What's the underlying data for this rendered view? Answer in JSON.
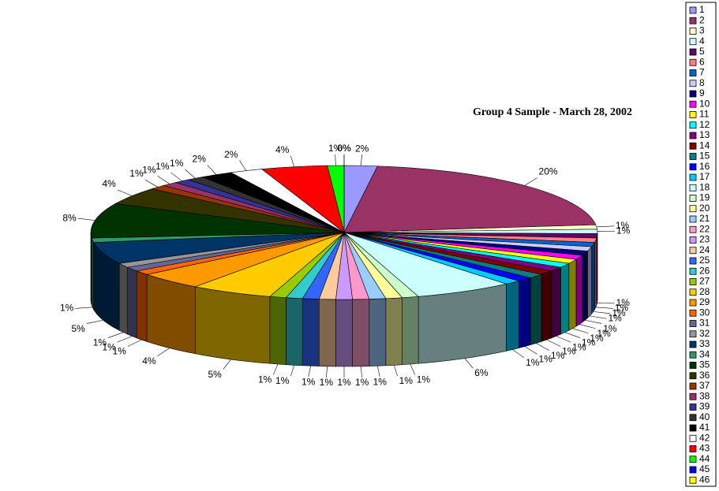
{
  "chart_data": {
    "type": "pie3d",
    "title": "Group 4 Sample - March 28, 2002",
    "categories": [
      "1",
      "2",
      "3",
      "4",
      "5",
      "6",
      "7",
      "8",
      "9",
      "10",
      "11",
      "12",
      "13",
      "14",
      "15",
      "16",
      "17",
      "18",
      "19",
      "20",
      "21",
      "22",
      "23",
      "24",
      "25",
      "26",
      "27",
      "28",
      "29",
      "30",
      "31",
      "32",
      "33",
      "34",
      "35",
      "36",
      "37",
      "38",
      "39",
      "40",
      "41",
      "42",
      "43",
      "44",
      "45",
      "46"
    ],
    "values": [
      2,
      20,
      1,
      1,
      1,
      1,
      1,
      1,
      1,
      1,
      1,
      1,
      1,
      1,
      1,
      1,
      1,
      6,
      1,
      1,
      1,
      1,
      1,
      1,
      1,
      1,
      1,
      5,
      4,
      1,
      1,
      1,
      5,
      1,
      8,
      4,
      1,
      1,
      1,
      1,
      2,
      2,
      4,
      1,
      0,
      0
    ],
    "value_labels": [
      "2%",
      "20%",
      "1%",
      "1%",
      "1%",
      "1%",
      "1%",
      "1%",
      "1%",
      "1%",
      "1%",
      "1%",
      "1%",
      "1%",
      "1%",
      "1%",
      "1%",
      "6%",
      "1%",
      "1%",
      "1%",
      "1%",
      "1%",
      "1%",
      "1%",
      "1%",
      "1%",
      "5%",
      "4%",
      "1%",
      "1%",
      "1%",
      "5%",
      "1%",
      "8%",
      "4%",
      "1%",
      "1%",
      "1%",
      "1%",
      "2%",
      "2%",
      "4%",
      "1%",
      "0%",
      "0%"
    ],
    "colors": [
      "#9999FF",
      "#993366",
      "#FFFFCC",
      "#CCFFFF",
      "#660066",
      "#FF8080",
      "#0066CC",
      "#CCCCFF",
      "#000080",
      "#FF00FF",
      "#FFFF00",
      "#00FFFF",
      "#800080",
      "#800000",
      "#008080",
      "#0000FF",
      "#00CCFF",
      "#CCFFFF",
      "#CCFFCC",
      "#FFFF99",
      "#99CCFF",
      "#FF99CC",
      "#CC99FF",
      "#FFCC99",
      "#3366FF",
      "#33CCCC",
      "#99CC00",
      "#FFCC00",
      "#FF9900",
      "#FF6600",
      "#666699",
      "#969696",
      "#003366",
      "#339966",
      "#003300",
      "#333300",
      "#993300",
      "#993366",
      "#333399",
      "#333333",
      "#000000",
      "#FFFFFF",
      "#FF0000",
      "#00FF00",
      "#0000FF",
      "#FFFF00"
    ],
    "legend": "right"
  }
}
